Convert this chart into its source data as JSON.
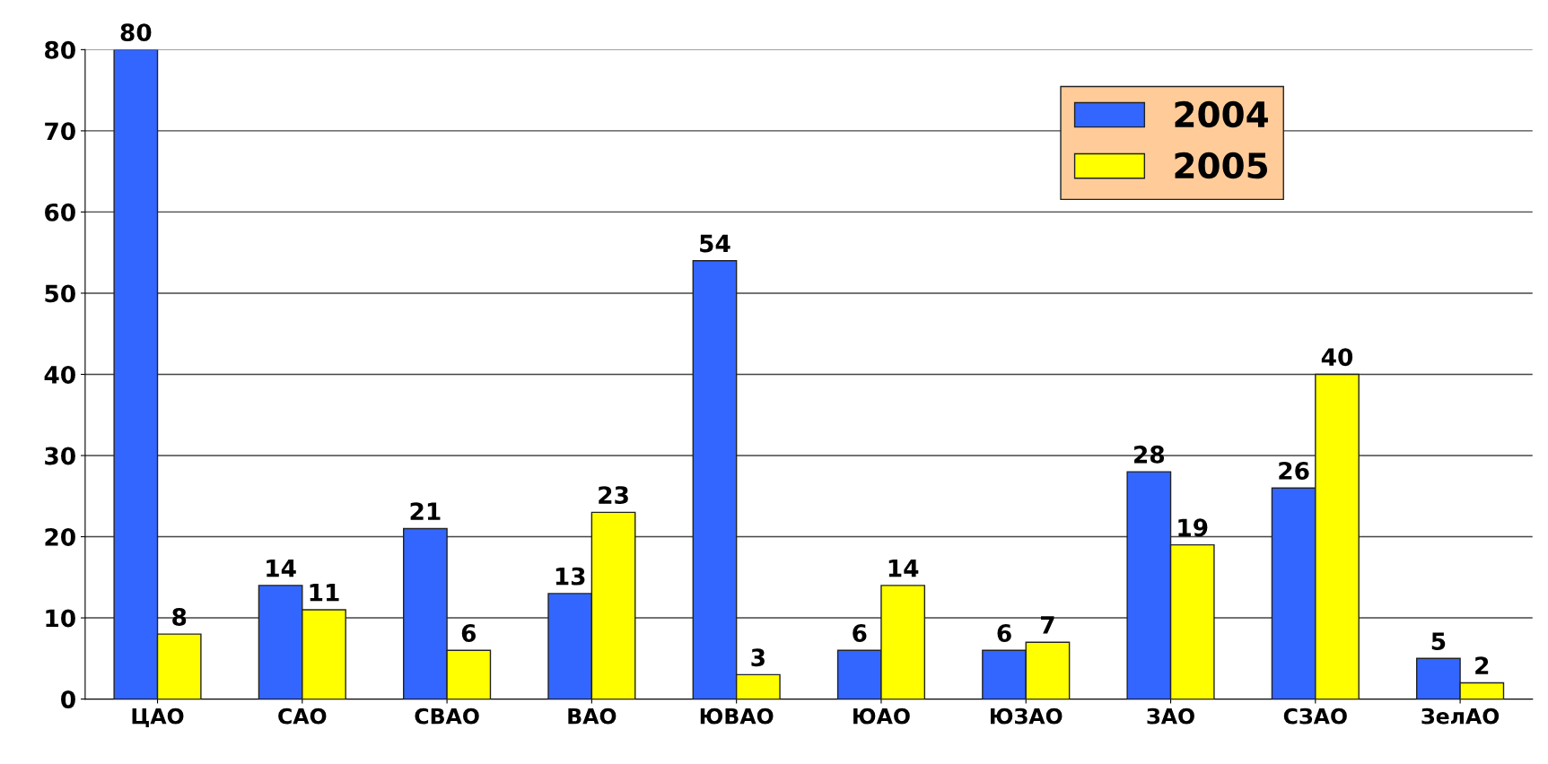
{
  "chart_data": {
    "type": "bar",
    "categories": [
      "ЦАО",
      "САО",
      "СВАО",
      "ВАО",
      "ЮВАО",
      "ЮАО",
      "ЮЗАО",
      "ЗАО",
      "СЗАО",
      "ЗелАО"
    ],
    "series": [
      {
        "name": "2004",
        "color": "#3366ff",
        "values": [
          80,
          14,
          21,
          13,
          54,
          6,
          6,
          28,
          26,
          5
        ]
      },
      {
        "name": "2005",
        "color": "#ffff00",
        "values": [
          8,
          11,
          6,
          23,
          3,
          14,
          7,
          19,
          40,
          2
        ]
      }
    ],
    "ylim": [
      0,
      80
    ],
    "yticks": [
      0,
      10,
      20,
      30,
      40,
      50,
      60,
      70,
      80
    ],
    "grid": "y",
    "legend": "top right",
    "data_labels": true
  }
}
